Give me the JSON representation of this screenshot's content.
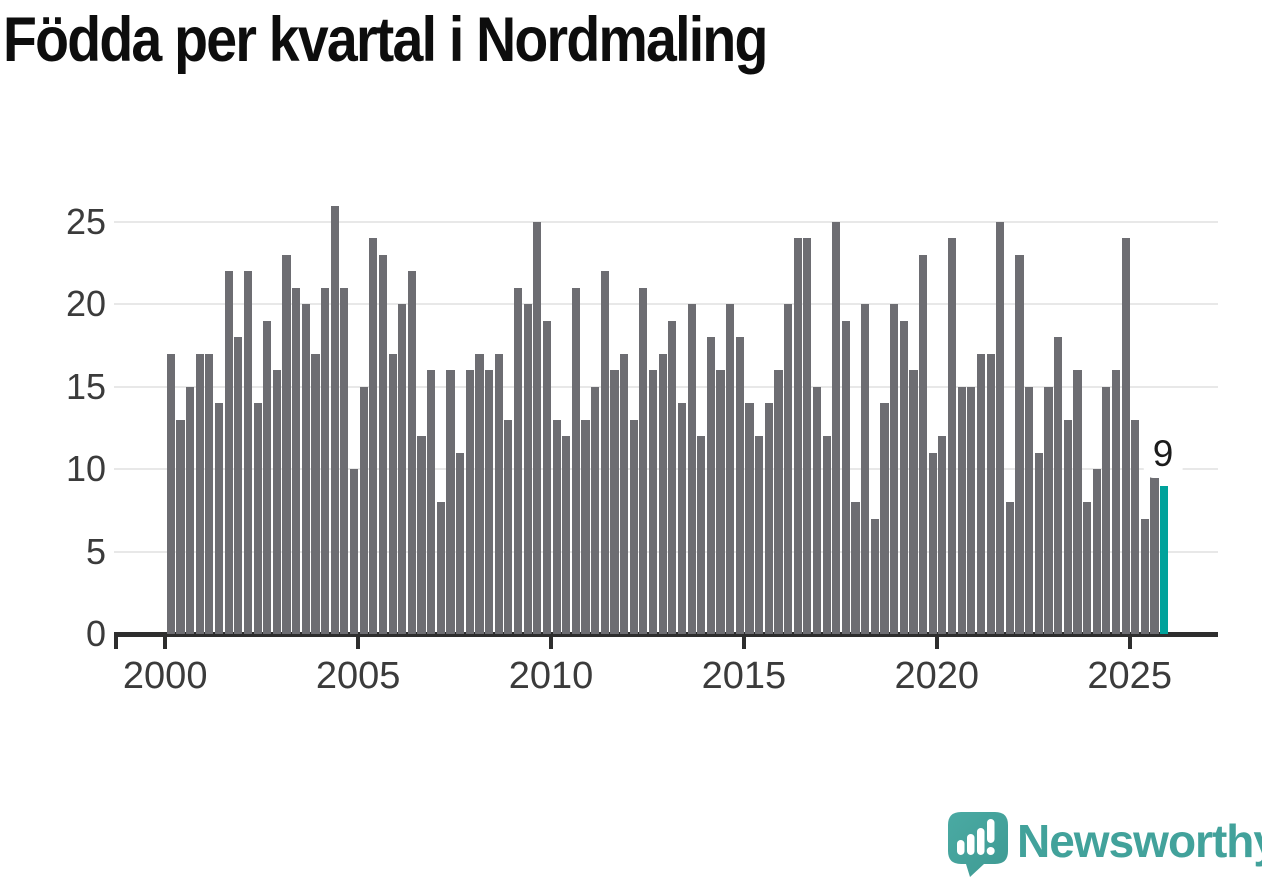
{
  "title": "Födda per kvartal i Nordmaling",
  "annotation": {
    "latest_value_label": "9"
  },
  "branding": {
    "name": "Newsworthy"
  },
  "colors": {
    "bar": "#6d6d72",
    "highlight": "#00a29b",
    "gridline": "#e8e8e8",
    "axis": "#2e2e2e",
    "tick_label": "#3b3b3b",
    "title_text": "#0d0d0d",
    "brand_teal": "#42a29b",
    "background": "#ffffff"
  },
  "chart_data": {
    "type": "bar",
    "title": "Födda per kvartal i Nordmaling",
    "xlabel": "",
    "ylabel": "",
    "ylim": [
      0,
      26
    ],
    "yticks": [
      0,
      5,
      10,
      15,
      20,
      25
    ],
    "xticks": [
      2000,
      2005,
      2010,
      2015,
      2020,
      2025
    ],
    "grid": "horizontal",
    "legend": "none",
    "highlight": {
      "index": 103,
      "category": "2025-Q4",
      "value": 9,
      "label": "9",
      "color": "#00a29b"
    },
    "categories": [
      "2000-Q1",
      "2000-Q2",
      "2000-Q3",
      "2000-Q4",
      "2001-Q1",
      "2001-Q2",
      "2001-Q3",
      "2001-Q4",
      "2002-Q1",
      "2002-Q2",
      "2002-Q3",
      "2002-Q4",
      "2003-Q1",
      "2003-Q2",
      "2003-Q3",
      "2003-Q4",
      "2004-Q1",
      "2004-Q2",
      "2004-Q3",
      "2004-Q4",
      "2005-Q1",
      "2005-Q2",
      "2005-Q3",
      "2005-Q4",
      "2006-Q1",
      "2006-Q2",
      "2006-Q3",
      "2006-Q4",
      "2007-Q1",
      "2007-Q2",
      "2007-Q3",
      "2007-Q4",
      "2008-Q1",
      "2008-Q2",
      "2008-Q3",
      "2008-Q4",
      "2009-Q1",
      "2009-Q2",
      "2009-Q3",
      "2009-Q4",
      "2010-Q1",
      "2010-Q2",
      "2010-Q3",
      "2010-Q4",
      "2011-Q1",
      "2011-Q2",
      "2011-Q3",
      "2011-Q4",
      "2012-Q1",
      "2012-Q2",
      "2012-Q3",
      "2012-Q4",
      "2013-Q1",
      "2013-Q2",
      "2013-Q3",
      "2013-Q4",
      "2014-Q1",
      "2014-Q2",
      "2014-Q3",
      "2014-Q4",
      "2015-Q1",
      "2015-Q2",
      "2015-Q3",
      "2015-Q4",
      "2016-Q1",
      "2016-Q2",
      "2016-Q3",
      "2016-Q4",
      "2017-Q1",
      "2017-Q2",
      "2017-Q3",
      "2017-Q4",
      "2018-Q1",
      "2018-Q2",
      "2018-Q3",
      "2018-Q4",
      "2019-Q1",
      "2019-Q2",
      "2019-Q3",
      "2019-Q4",
      "2020-Q1",
      "2020-Q2",
      "2020-Q3",
      "2020-Q4",
      "2021-Q1",
      "2021-Q2",
      "2021-Q3",
      "2021-Q4",
      "2022-Q1",
      "2022-Q2",
      "2022-Q3",
      "2022-Q4",
      "2023-Q1",
      "2023-Q2",
      "2023-Q3",
      "2023-Q4",
      "2024-Q1",
      "2024-Q2",
      "2024-Q3",
      "2024-Q4",
      "2025-Q1",
      "2025-Q2",
      "2025-Q3",
      "2025-Q4"
    ],
    "values": [
      17,
      13,
      15,
      17,
      17,
      14,
      22,
      18,
      22,
      14,
      19,
      16,
      23,
      21,
      20,
      17,
      21,
      26,
      21,
      10,
      15,
      24,
      23,
      17,
      20,
      22,
      12,
      16,
      8,
      16,
      11,
      16,
      17,
      16,
      17,
      13,
      21,
      20,
      25,
      19,
      13,
      12,
      21,
      13,
      15,
      22,
      16,
      17,
      13,
      21,
      16,
      17,
      19,
      14,
      20,
      12,
      18,
      16,
      20,
      18,
      14,
      12,
      14,
      16,
      20,
      24,
      24,
      15,
      12,
      25,
      19,
      8,
      20,
      7,
      14,
      20,
      19,
      16,
      23,
      11,
      12,
      24,
      15,
      15,
      17,
      17,
      25,
      8,
      23,
      15,
      11,
      15,
      18,
      13,
      16,
      8,
      10,
      15,
      16,
      24,
      13,
      7,
      10,
      9
    ]
  }
}
